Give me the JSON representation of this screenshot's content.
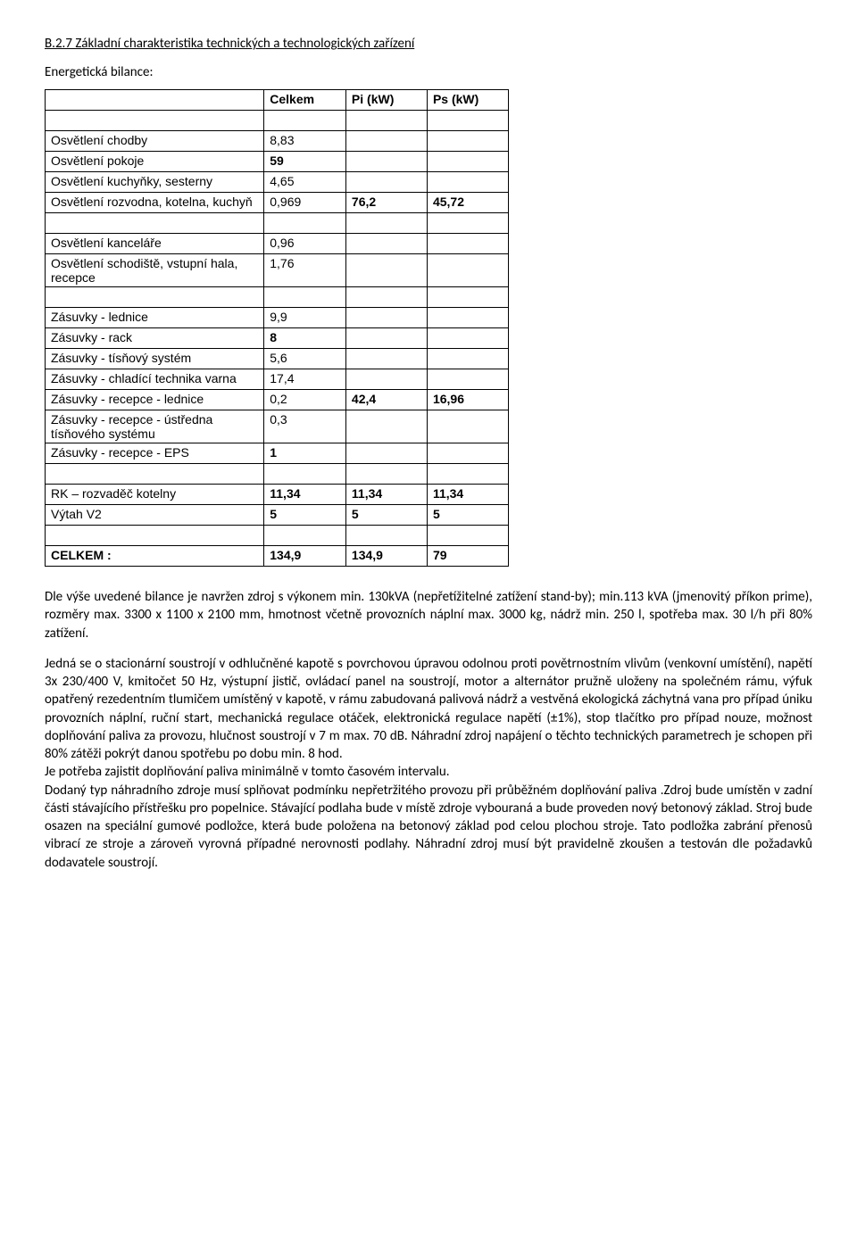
{
  "heading": "B.2.7 Základní charakteristika technických a technologických zařízení",
  "subheading": "Energetická bilance:",
  "table": {
    "columns": [
      "",
      "Celkem",
      "Pi (kW)",
      "Ps (kW)"
    ],
    "rows": [
      {
        "cells": [
          "",
          "",
          "",
          ""
        ],
        "bold": [
          false,
          true,
          true,
          true
        ],
        "header": true
      },
      {
        "cells": [
          "",
          "",
          "",
          ""
        ]
      },
      {
        "cells": [
          "Osvětlení chodby",
          "8,83",
          "",
          ""
        ]
      },
      {
        "cells": [
          "Osvětlení pokoje",
          "59",
          "",
          ""
        ],
        "bold": [
          false,
          true,
          false,
          false
        ]
      },
      {
        "cells": [
          "Osvětlení kuchyňky, sesterny",
          "4,65",
          "",
          ""
        ]
      },
      {
        "cells": [
          "Osvětlení rozvodna, kotelna, kuchyň",
          "0,969",
          "76,2",
          "45,72"
        ],
        "bold": [
          false,
          false,
          true,
          true
        ]
      },
      {
        "cells": [
          "",
          "",
          "",
          ""
        ]
      },
      {
        "cells": [
          "Osvětlení kanceláře",
          "0,96",
          "",
          ""
        ]
      },
      {
        "cells": [
          "Osvětlení schodiště, vstupní hala, recepce",
          "1,76",
          "",
          ""
        ]
      },
      {
        "cells": [
          "",
          "",
          "",
          ""
        ]
      },
      {
        "cells": [
          "Zásuvky - lednice",
          "9,9",
          "",
          ""
        ]
      },
      {
        "cells": [
          "Zásuvky - rack",
          "8",
          "",
          ""
        ],
        "bold": [
          false,
          true,
          false,
          false
        ]
      },
      {
        "cells": [
          "Zásuvky - tísňový systém",
          "5,6",
          "",
          ""
        ]
      },
      {
        "cells": [
          "Zásuvky - chladící technika varna",
          "17,4",
          "",
          ""
        ]
      },
      {
        "cells": [
          "Zásuvky - recepce - lednice",
          "0,2",
          "42,4",
          "16,96"
        ],
        "bold": [
          false,
          false,
          true,
          true
        ]
      },
      {
        "cells": [
          "Zásuvky - recepce - ústředna tísňového systému",
          "0,3",
          "",
          ""
        ]
      },
      {
        "cells": [
          "Zásuvky - recepce - EPS",
          "1",
          "",
          ""
        ],
        "bold": [
          false,
          true,
          false,
          false
        ]
      },
      {
        "cells": [
          "",
          "",
          "",
          ""
        ]
      },
      {
        "cells": [
          "RK – rozvaděč kotelny",
          "11,34",
          "11,34",
          "11,34"
        ],
        "bold": [
          false,
          true,
          true,
          true
        ]
      },
      {
        "cells": [
          "Výtah V2",
          "5",
          "5",
          "5"
        ],
        "bold": [
          false,
          true,
          true,
          true
        ]
      },
      {
        "cells": [
          "",
          "",
          "",
          ""
        ]
      },
      {
        "cells": [
          "CELKEM :",
          "134,9",
          "134,9",
          "79"
        ],
        "bold": [
          true,
          true,
          true,
          true
        ]
      }
    ]
  },
  "para1": "Dle výše uvedené bilance je navržen zdroj s výkonem min. 130kVA (nepřetížitelné zatížení stand-by); min.113 kVA (jmenovitý příkon prime), rozměry max. 3300 x 1100 x 2100 mm, hmotnost včetně provozních náplní max. 3000 kg, nádrž min. 250 l, spotřeba max. 30 l/h při 80% zatížení.",
  "para2": "Jedná se o stacionární soustrojí v odhlučněné kapotě s povrchovou úpravou odolnou proti povětrnostním vlivům (venkovní umístění), napětí 3x 230/400 V, kmitočet 50 Hz, výstupní jistič, ovládací panel na soustrojí, motor a alternátor pružně uloženy na společném rámu, výfuk opatřený rezedentním tlumičem umístěný v kapotě, v rámu zabudovaná palivová nádrž a vestvěná ekologická záchytná vana pro případ úniku provozních náplní, ruční start, mechanická regulace otáček, elektronická regulace napětí (±1%), stop tlačítko pro případ nouze, možnost doplňování paliva za provozu, hlučnost soustrojí v 7 m max. 70 dB. Náhradní zdroj napájení o těchto technických parametrech je schopen při 80% zátěži pokrýt danou spotřebu po dobu min. 8 hod.",
  "para3": "Je potřeba zajistit doplňování paliva minimálně v tomto časovém intervalu.",
  "para4": "Dodaný typ náhradního zdroje musí splňovat podmínku nepřetržitého provozu při průběžném doplňování paliva .Zdroj bude umístěn v zadní části stávajícího přístřešku pro popelnice. Stávající podlaha bude v místě zdroje vybouraná a bude proveden nový betonový základ. Stroj bude osazen na speciální gumové podložce, která bude položena na betonový základ pod celou plochou stroje. Tato podložka zabrání přenosů vibrací ze stroje a zároveň vyrovná případné nerovnosti podlahy. Náhradní zdroj musí být pravidelně zkoušen a testován dle požadavků dodavatele soustrojí."
}
